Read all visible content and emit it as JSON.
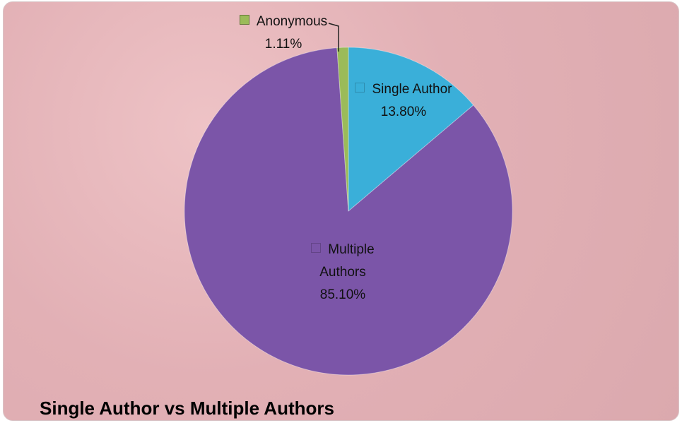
{
  "chart_data": {
    "type": "pie",
    "title": "Single Author vs Multiple Authors",
    "categories": [
      "Single Author",
      "Multiple Authors",
      "Anonymous"
    ],
    "values": [
      13.8,
      85.1,
      1.11
    ],
    "value_labels": [
      "13.80%",
      "85.10%",
      "1.11%"
    ],
    "colors": [
      "#3aafd9",
      "#7b55a8",
      "#9bbb59"
    ]
  }
}
